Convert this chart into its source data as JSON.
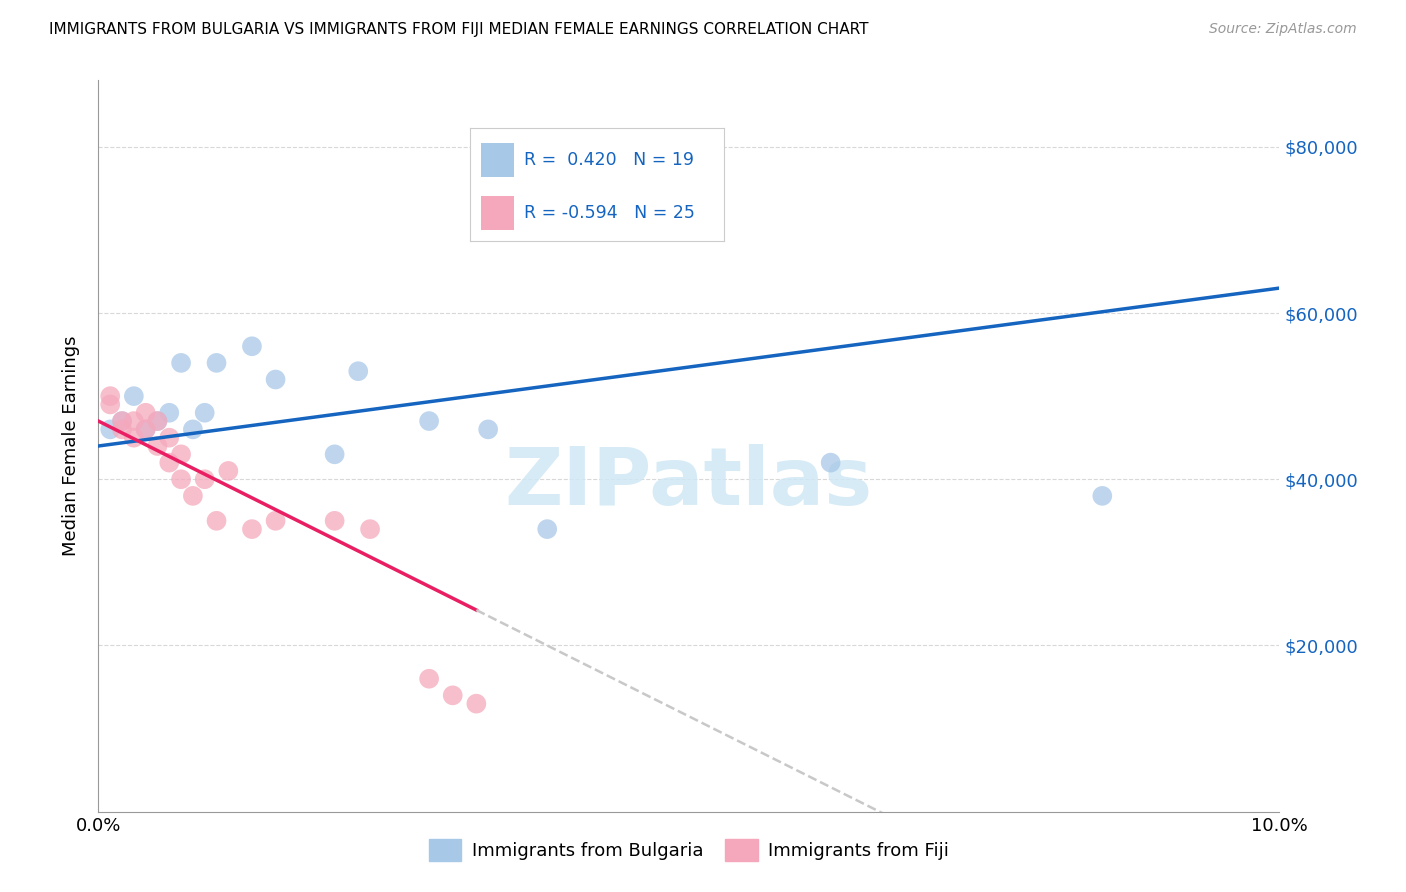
{
  "title": "IMMIGRANTS FROM BULGARIA VS IMMIGRANTS FROM FIJI MEDIAN FEMALE EARNINGS CORRELATION CHART",
  "source": "Source: ZipAtlas.com",
  "ylabel": "Median Female Earnings",
  "x_min": 0.0,
  "x_max": 0.1,
  "y_min": 0,
  "y_max": 88000,
  "color_bulgaria": "#a8c8e8",
  "color_fiji": "#f5a8bc",
  "line_color_bulgaria": "#1565c0",
  "line_color_fiji": "#e91e63",
  "line_color_dashed": "#c8c8c8",
  "watermark_text": "ZIPatlas",
  "watermark_color": "#d0e8f5",
  "legend_label_1": "Immigrants from Bulgaria",
  "legend_label_2": "Immigrants from Fiji",
  "legend_r1": "R =  0.420",
  "legend_n1": "N = 19",
  "legend_r2": "R = -0.594",
  "legend_n2": "N = 25",
  "bulgaria_x": [
    0.001,
    0.002,
    0.003,
    0.004,
    0.005,
    0.006,
    0.007,
    0.008,
    0.009,
    0.01,
    0.013,
    0.015,
    0.02,
    0.022,
    0.028,
    0.033,
    0.038,
    0.062,
    0.085
  ],
  "bulgaria_y": [
    46000,
    47000,
    50000,
    46000,
    47000,
    48000,
    54000,
    46000,
    48000,
    54000,
    56000,
    52000,
    43000,
    53000,
    47000,
    46000,
    34000,
    42000,
    38000
  ],
  "fiji_x": [
    0.001,
    0.001,
    0.002,
    0.002,
    0.003,
    0.003,
    0.004,
    0.004,
    0.005,
    0.005,
    0.006,
    0.006,
    0.007,
    0.007,
    0.008,
    0.009,
    0.01,
    0.011,
    0.013,
    0.015,
    0.02,
    0.023,
    0.028,
    0.03,
    0.032
  ],
  "fiji_y": [
    50000,
    49000,
    47000,
    46000,
    47000,
    45000,
    48000,
    46000,
    47000,
    44000,
    45000,
    42000,
    40000,
    43000,
    38000,
    40000,
    35000,
    41000,
    34000,
    35000,
    35000,
    34000,
    16000,
    14000,
    13000
  ],
  "dot_size": 200,
  "dot_alpha": 0.75,
  "grid_color": "#d8d8d8",
  "grid_linestyle": "--",
  "grid_linewidth": 0.8,
  "line_linewidth": 2.5,
  "y_tick_labels": [
    "$20,000",
    "$40,000",
    "$60,000",
    "$80,000"
  ],
  "y_ticks": [
    20000,
    40000,
    60000,
    80000
  ],
  "x_tick_labels_show": [
    "0.0%",
    "10.0%"
  ],
  "x_ticks_show": [
    0.0,
    0.1
  ]
}
